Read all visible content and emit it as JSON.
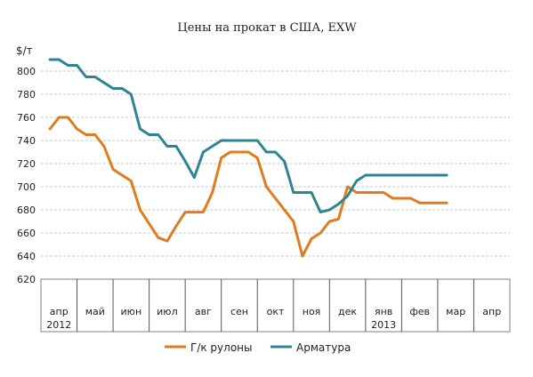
{
  "chart_data": {
    "type": "line",
    "title": "Цены на прокат в США, EXW",
    "ylabel": "$/т",
    "ylim": [
      620,
      810
    ],
    "yticks": [
      620,
      640,
      660,
      680,
      700,
      720,
      740,
      760,
      780,
      800
    ],
    "grid": true,
    "legend_position": "bottom",
    "months": [
      "апр",
      "май",
      "июн",
      "июл",
      "авг",
      "сен",
      "окт",
      "ноя",
      "дек",
      "янв",
      "фев",
      "мар",
      "апр"
    ],
    "years": [
      {
        "month_index": 0,
        "label": "2012"
      },
      {
        "month_index": 9,
        "label": "2013"
      }
    ],
    "series": [
      {
        "name": "Г/к рулоны",
        "color": "#e07b1f",
        "x": [
          0.0,
          0.25,
          0.5,
          0.75,
          1.0,
          1.25,
          1.5,
          1.75,
          2.0,
          2.25,
          2.5,
          2.75,
          3.0,
          3.25,
          3.5,
          3.75,
          4.0,
          4.25,
          4.5,
          4.75,
          5.0,
          5.25,
          5.5,
          5.75,
          6.0,
          6.25,
          6.5,
          6.75,
          7.0,
          7.25,
          7.5,
          7.75,
          8.0,
          8.25,
          8.5,
          8.75,
          9.0,
          9.25,
          9.5,
          9.75,
          10.0,
          10.25,
          10.5,
          10.75,
          11.0
        ],
        "values": [
          750,
          760,
          760,
          750,
          745,
          745,
          735,
          715,
          710,
          705,
          680,
          668,
          656,
          653,
          666,
          678,
          678,
          678,
          695,
          725,
          730,
          730,
          730,
          725,
          700,
          690,
          680,
          670,
          640,
          655,
          660,
          670,
          672,
          700,
          695,
          695,
          695,
          695,
          690,
          690,
          690,
          686,
          686,
          686,
          686
        ]
      },
      {
        "name": "Арматура",
        "color": "#2e8495",
        "x": [
          0.0,
          0.25,
          0.5,
          0.75,
          1.0,
          1.25,
          1.5,
          1.75,
          2.0,
          2.25,
          2.5,
          2.75,
          3.0,
          3.25,
          3.5,
          3.75,
          4.0,
          4.25,
          4.5,
          4.75,
          5.0,
          5.25,
          5.5,
          5.75,
          6.0,
          6.25,
          6.5,
          6.75,
          7.0,
          7.25,
          7.5,
          7.75,
          8.0,
          8.25,
          8.5,
          8.75,
          9.0,
          9.25,
          9.5,
          9.75,
          10.0,
          10.25,
          10.5,
          10.75,
          11.0
        ],
        "values": [
          810,
          810,
          805,
          805,
          795,
          795,
          790,
          785,
          785,
          780,
          750,
          745,
          745,
          735,
          735,
          722,
          708,
          730,
          735,
          740,
          740,
          740,
          740,
          740,
          730,
          730,
          722,
          695,
          695,
          695,
          678,
          680,
          685,
          692,
          705,
          710,
          710,
          710,
          710,
          710,
          710,
          710,
          710,
          710,
          710
        ]
      }
    ]
  }
}
